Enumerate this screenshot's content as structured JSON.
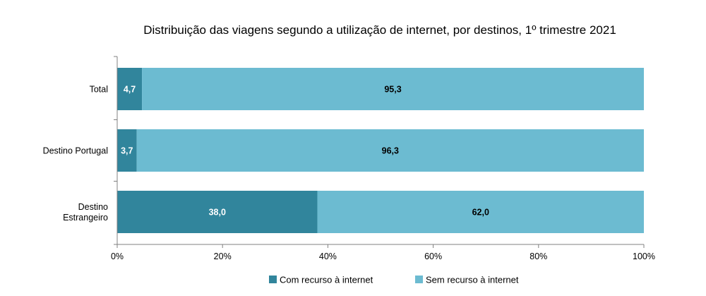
{
  "chart_data": {
    "type": "bar",
    "orientation": "horizontal",
    "stacked": true,
    "title": "Distribuição das viagens segundo a utilização de internet, por destinos, 1º trimestre 2021",
    "categories": [
      "Total",
      "Destino Portugal",
      "Destino Estrangeiro"
    ],
    "category_lines": [
      [
        "Total"
      ],
      [
        "Destino Portugal"
      ],
      [
        "Destino",
        "Estrangeiro"
      ]
    ],
    "series": [
      {
        "name": "Com recurso à internet",
        "values": [
          4.7,
          3.7,
          38.0
        ],
        "labels": [
          "4,7",
          "3,7",
          "38,0"
        ],
        "color": "#31859c",
        "label_color": "#ffffff"
      },
      {
        "name": "Sem recurso à internet",
        "values": [
          95.3,
          96.3,
          62.0
        ],
        "labels": [
          "95,3",
          "96,3",
          "62,0"
        ],
        "color": "#6cbbd1",
        "label_color": "#000000"
      }
    ],
    "xlim": [
      0,
      100
    ],
    "x_ticks": [
      0,
      20,
      40,
      60,
      80,
      100
    ],
    "x_tick_labels": [
      "0%",
      "20%",
      "40%",
      "60%",
      "80%",
      "100%"
    ],
    "xlabel": "",
    "ylabel": "",
    "grid": false,
    "legend_position": "bottom"
  }
}
